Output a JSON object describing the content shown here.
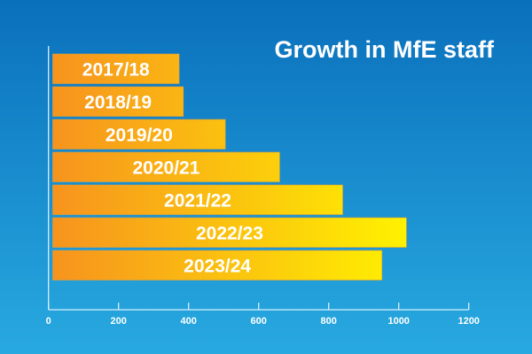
{
  "chart_data": {
    "type": "bar",
    "orientation": "horizontal",
    "title": "Growth in MfE staff",
    "categories": [
      "2017/18",
      "2018/19",
      "2019/20",
      "2020/21",
      "2021/22",
      "2022/23",
      "2023/24"
    ],
    "values": [
      373,
      385,
      505,
      660,
      840,
      1022,
      952
    ],
    "xlim": [
      0,
      1200
    ],
    "xticks": [
      "0",
      "200",
      "400",
      "600",
      "800",
      "1000",
      "1200"
    ],
    "xtick_values": [
      0,
      200,
      400,
      600,
      800,
      1000,
      1200
    ],
    "xlabel": "",
    "ylabel": "",
    "grid": false,
    "legend": "none",
    "colors": {
      "bg_top": "#0a70bc",
      "bg_bottom": "#28a9e0",
      "bar_start": "#f7931e",
      "bar_end": "#fff200",
      "axis": "#d8eef9"
    }
  }
}
